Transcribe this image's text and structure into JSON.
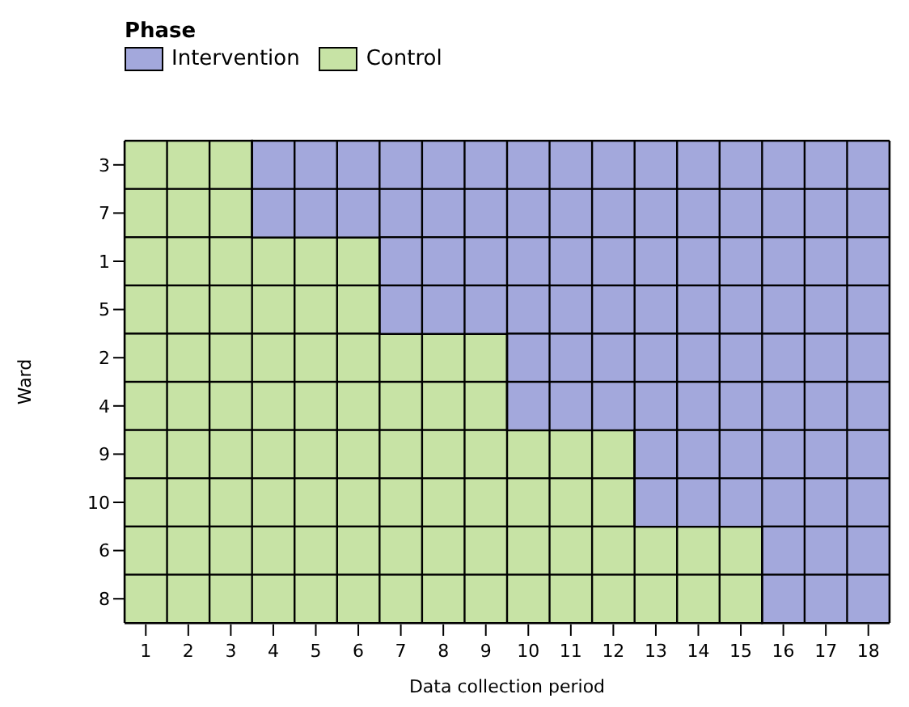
{
  "chart_data": {
    "type": "bar",
    "orientation": "horizontal",
    "stacked": true,
    "xlabel": "Data collection period",
    "ylabel": "Ward",
    "legend_title": "Phase",
    "legend": "top left",
    "categories": [
      "3",
      "7",
      "1",
      "5",
      "2",
      "4",
      "9",
      "10",
      "6",
      "8"
    ],
    "xlim": [
      0,
      18
    ],
    "grid": "x",
    "xticks": [
      {
        "value": 0,
        "label": null
      },
      {
        "value": 1,
        "label": null
      },
      {
        "value": 2,
        "label": null
      },
      {
        "value": 3,
        "label": null
      },
      {
        "value": 4,
        "label": null
      },
      {
        "value": 5,
        "label": null
      },
      {
        "value": 6,
        "label": null
      },
      {
        "value": 7,
        "label": null
      },
      {
        "value": 8,
        "label": null
      },
      {
        "value": 9,
        "label": null
      },
      {
        "value": 10,
        "label": null
      },
      {
        "value": 11,
        "label": null
      },
      {
        "value": 12,
        "label": null
      },
      {
        "value": 13,
        "label": null
      },
      {
        "value": 14,
        "label": null
      },
      {
        "value": 15,
        "label": null
      },
      {
        "value": 16,
        "label": null
      },
      {
        "value": 17,
        "label": null
      },
      {
        "value": 18,
        "label": null
      },
      {
        "value": 0.5,
        "label": "1"
      },
      {
        "value": 1.5,
        "label": "2"
      },
      {
        "value": 2.5,
        "label": "3"
      },
      {
        "value": 3.5,
        "label": "4"
      },
      {
        "value": 4.5,
        "label": "5"
      },
      {
        "value": 5.5,
        "label": "6"
      },
      {
        "value": 6.5,
        "label": "7"
      },
      {
        "value": 7.5,
        "label": "8"
      },
      {
        "value": 8.5,
        "label": "9"
      },
      {
        "value": 9.5,
        "label": "10"
      },
      {
        "value": 10.5,
        "label": "11"
      },
      {
        "value": 11.5,
        "label": "12"
      },
      {
        "value": 12.5,
        "label": "13"
      },
      {
        "value": 13.5,
        "label": "14"
      },
      {
        "value": 14.5,
        "label": "15"
      },
      {
        "value": 15.5,
        "label": "16"
      },
      {
        "value": 16.5,
        "label": "17"
      },
      {
        "value": 17.5,
        "label": "18"
      }
    ],
    "series": [
      {
        "name": "Control",
        "color": "#c7e3a5",
        "values": [
          3,
          3,
          6,
          6,
          9,
          9,
          12,
          12,
          15,
          15
        ]
      },
      {
        "name": "Intervention",
        "color": "#a3a8dc",
        "values": [
          15,
          15,
          12,
          12,
          9,
          9,
          6,
          6,
          3,
          3
        ]
      }
    ]
  }
}
